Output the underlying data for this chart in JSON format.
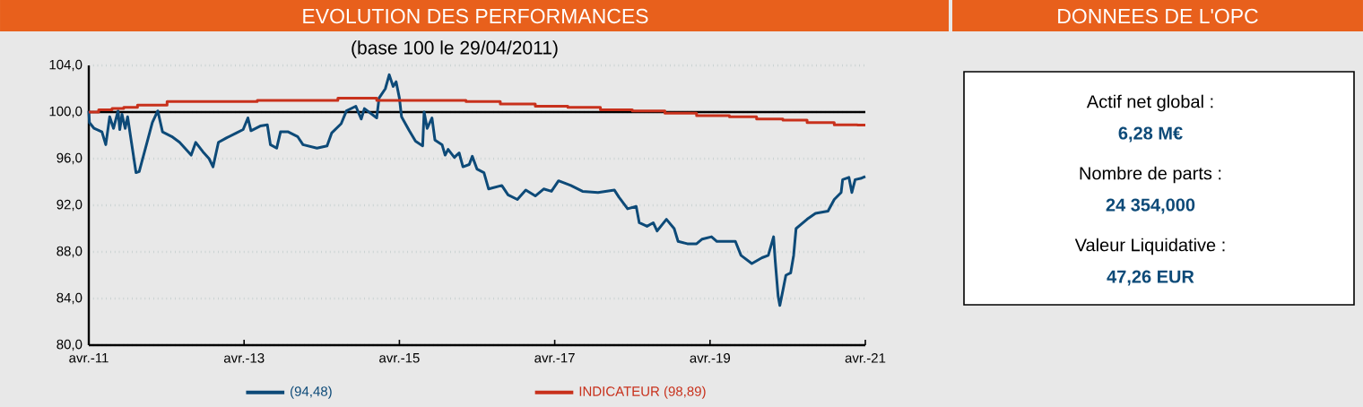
{
  "chart_data": [
    {
      "type": "line",
      "title": "EVOLUTION DES PERFORMANCES",
      "subtitle": "(base 100 le 29/04/2011)",
      "xlim": [
        "2011-04",
        "2021-04"
      ],
      "xticks": [
        {
          "value": "2011-04",
          "label": "avr.-11"
        },
        {
          "value": "2013-04",
          "label": "avr.-13"
        },
        {
          "value": "2015-04",
          "label": "avr.-15"
        },
        {
          "value": "2017-04",
          "label": "avr.-17"
        },
        {
          "value": "2019-04",
          "label": "avr.-19"
        },
        {
          "value": "2021-04",
          "label": "avr.-21"
        }
      ],
      "ylim": [
        80,
        104
      ],
      "yticks": [
        {
          "value": 80,
          "label": "80,0"
        },
        {
          "value": 84,
          "label": "84,0"
        },
        {
          "value": 88,
          "label": "88,0"
        },
        {
          "value": 92,
          "label": "92,0"
        },
        {
          "value": 96,
          "label": "96,0"
        },
        {
          "value": 100,
          "label": "100,0"
        },
        {
          "value": 104,
          "label": "104,0"
        }
      ],
      "grid": "y",
      "legend": "bottom",
      "ref_lines": [
        {
          "axis": "y",
          "value": 100,
          "color": "#000000"
        }
      ],
      "series": [
        {
          "name": "(94,48)",
          "color": "#0d4a78",
          "type": "line",
          "x": [
            "2011-04-01",
            "2011-04-04",
            "2011-04-26",
            "2011-06-02",
            "2011-06-20",
            "2011-07-08",
            "2011-07-26",
            "2011-08-17",
            "2011-08-25",
            "2011-09-05",
            "2011-09-20",
            "2011-10-01",
            "2011-10-19",
            "2011-11-10",
            "2011-11-25",
            "2012-01-01",
            "2012-01-26",
            "2012-02-21",
            "2012-03-13",
            "2012-04-26",
            "2012-06-02",
            "2012-06-27",
            "2012-07-26",
            "2012-08-17",
            "2012-09-20",
            "2012-10-19",
            "2012-11-07",
            "2012-12-02",
            "2013-01-11",
            "2013-02-25",
            "2013-03-27",
            "2013-04-19",
            "2013-05-03",
            "2013-06-16",
            "2013-07-19",
            "2013-08-03",
            "2013-09-02",
            "2013-09-20",
            "2013-10-26",
            "2013-12-09",
            "2014-01-04",
            "2014-03-09",
            "2014-04-26",
            "2014-05-17",
            "2014-07-01",
            "2014-07-26",
            "2014-09-09",
            "2014-10-04",
            "2014-10-19",
            "2014-12-16",
            "2014-12-27",
            "2015-01-26",
            "2015-02-14",
            "2015-03-02",
            "2015-03-16",
            "2015-04-01",
            "2015-04-11",
            "2015-05-17",
            "2015-06-16",
            "2015-07-19",
            "2015-07-26",
            "2015-08-10",
            "2015-09-02",
            "2015-09-16",
            "2015-10-19",
            "2015-11-03",
            "2015-11-17",
            "2015-12-16",
            "2016-01-08",
            "2016-01-26",
            "2016-02-25",
            "2016-03-09",
            "2016-04-01",
            "2016-05-03",
            "2016-05-25",
            "2016-07-26",
            "2016-08-25",
            "2016-10-08",
            "2016-11-17",
            "2017-01-01",
            "2017-02-10",
            "2017-03-16",
            "2017-04-19",
            "2017-06-16",
            "2017-08-10",
            "2017-10-22",
            "2018-01-08",
            "2018-01-29",
            "2018-03-09",
            "2018-04-19",
            "2018-05-03",
            "2018-06-09",
            "2018-07-08",
            "2018-07-26",
            "2018-09-09",
            "2018-10-15",
            "2018-11-03",
            "2018-12-16",
            "2019-01-29",
            "2019-02-25",
            "2019-04-08",
            "2019-05-03",
            "2019-07-29",
            "2019-08-25",
            "2019-10-15",
            "2019-12-02",
            "2020-01-01",
            "2020-01-26",
            "2020-02-03",
            "2020-02-17",
            "2020-02-25",
            "2020-03-09",
            "2020-03-23",
            "2020-04-15",
            "2020-04-29",
            "2020-05-10",
            "2020-07-01",
            "2020-08-10",
            "2020-10-08",
            "2020-11-07",
            "2020-12-09",
            "2020-12-16",
            "2021-01-15",
            "2021-01-29",
            "2021-02-14",
            "2021-03-09",
            "2021-04-01"
          ],
          "values": [
            100.1,
            99.1,
            98.6,
            98.3,
            97.2,
            99.6,
            98.6,
            100.1,
            98.5,
            99.8,
            98.6,
            99.6,
            97.4,
            94.8,
            94.9,
            97.4,
            99.1,
            100.1,
            98.3,
            97.9,
            97.4,
            96.9,
            96.3,
            97.4,
            96.6,
            96.0,
            95.3,
            97.4,
            97.8,
            98.2,
            98.5,
            99.5,
            98.4,
            98.8,
            98.9,
            97.2,
            96.9,
            98.3,
            98.3,
            97.9,
            97.2,
            96.9,
            97.1,
            98.2,
            99.0,
            100.1,
            100.5,
            99.4,
            100.3,
            99.5,
            101.2,
            102.0,
            103.2,
            102.2,
            102.6,
            101.2,
            99.6,
            98.4,
            97.5,
            97.1,
            100.0,
            98.6,
            99.5,
            97.6,
            97.2,
            96.3,
            96.8,
            96.1,
            96.5,
            95.3,
            95.5,
            96.2,
            95.1,
            94.8,
            93.4,
            93.7,
            92.9,
            92.5,
            93.3,
            92.8,
            93.4,
            93.2,
            94.1,
            93.7,
            93.2,
            93.1,
            93.3,
            92.7,
            91.7,
            91.9,
            90.5,
            90.2,
            90.5,
            89.8,
            90.8,
            90.0,
            88.9,
            88.7,
            88.7,
            89.1,
            89.3,
            88.9,
            88.9,
            87.7,
            87.0,
            87.5,
            87.7,
            89.3,
            87.3,
            84.2,
            83.4,
            84.7,
            86.0,
            86.2,
            87.7,
            90.0,
            90.8,
            91.3,
            91.5,
            92.5,
            93.1,
            94.2,
            94.4,
            93.1,
            94.2,
            94.3,
            94.48
          ]
        },
        {
          "name": "INDICATEUR (98,89)",
          "color": "#c8311c",
          "type": "step",
          "x": [
            "2011-04-01",
            "2011-05-17",
            "2011-07-19",
            "2011-09-13",
            "2011-11-17",
            "2012-04-04",
            "2013-06-02",
            "2014-06-16",
            "2014-12-16",
            "2016-02-10",
            "2016-07-19",
            "2017-01-01",
            "2017-06-02",
            "2017-11-03",
            "2018-04-01",
            "2018-09-02",
            "2019-01-29",
            "2019-07-01",
            "2019-11-07",
            "2020-03-09",
            "2020-07-01",
            "2020-11-07",
            "2021-02-25",
            "2021-04-01"
          ],
          "values": [
            100.0,
            100.2,
            100.3,
            100.4,
            100.6,
            100.9,
            101.0,
            101.2,
            101.0,
            100.9,
            100.7,
            100.5,
            100.4,
            100.2,
            100.1,
            99.9,
            99.7,
            99.6,
            99.4,
            99.3,
            99.1,
            98.9,
            98.89,
            98.89
          ]
        }
      ]
    },
    {
      "type": "other",
      "title": "DONNEES DE L'OPC",
      "annotations": [
        "Actif net global :",
        "6,28 M€",
        "Nombre de parts :",
        "24 354,000",
        "Valeur Liquidative :",
        "47,26 EUR"
      ]
    }
  ]
}
